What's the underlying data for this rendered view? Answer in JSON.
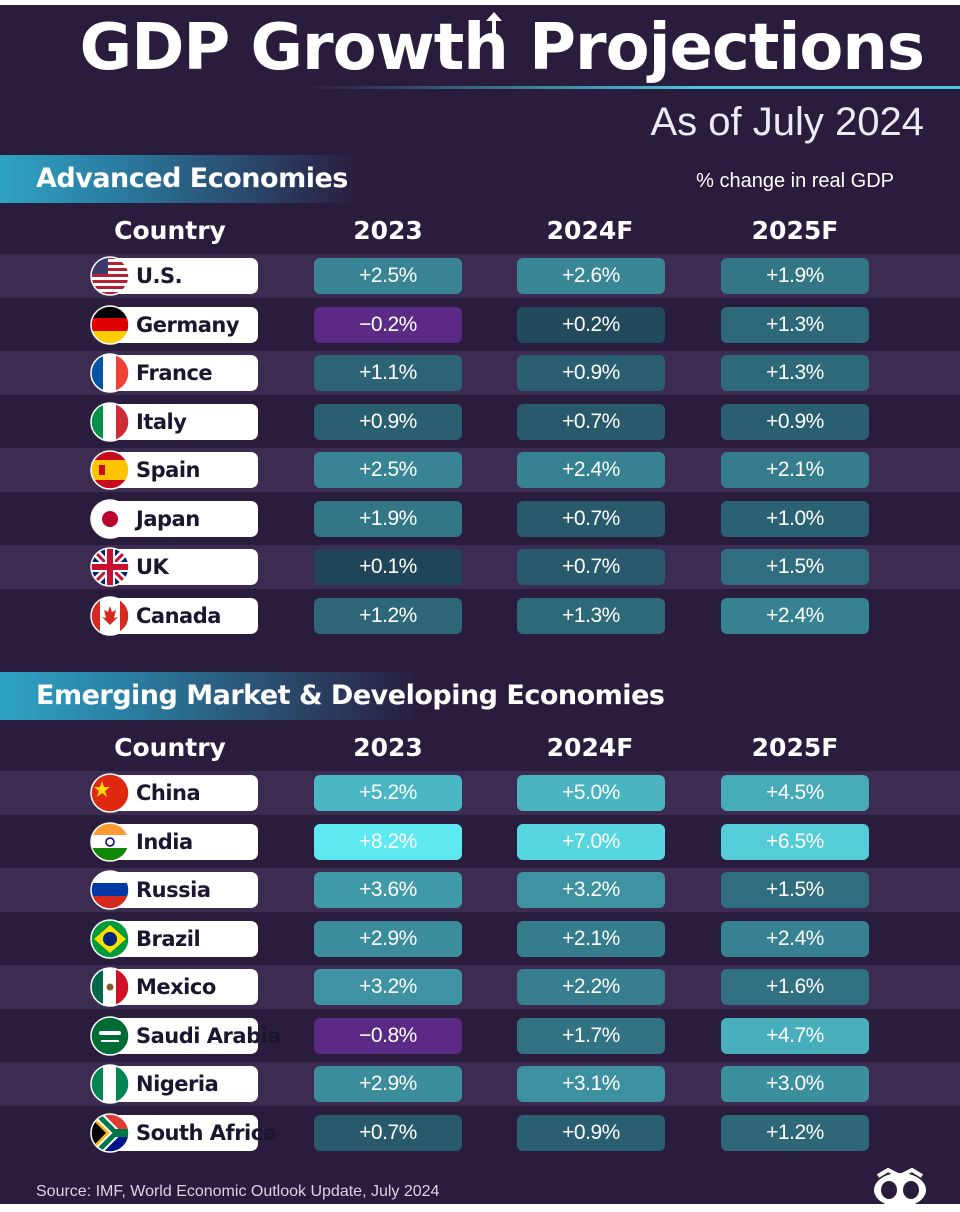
{
  "title": "GDP Growth Projections",
  "subtitle": "As of July 2024",
  "unit_note": "% change in real GDP",
  "source": "Source: IMF, World Economic Outlook Update, July 2024",
  "logo_icon": "visual-capitalist-logo-icon",
  "colors": {
    "background": "#2a1c3d",
    "negative": "#5b2a86",
    "scale_low": "#1e3f52",
    "scale_high": "#5ee8f2"
  },
  "chart_data": [
    {
      "type": "table",
      "title": "Advanced Economies",
      "columns": [
        "Country",
        "2023",
        "2024F",
        "2025F"
      ],
      "series": [
        {
          "name": "2023",
          "values": [
            2.5,
            -0.2,
            1.1,
            0.9,
            2.5,
            1.9,
            0.1,
            1.2
          ]
        },
        {
          "name": "2024F",
          "values": [
            2.6,
            0.2,
            0.9,
            0.7,
            2.4,
            0.7,
            0.7,
            1.3
          ]
        },
        {
          "name": "2025F",
          "values": [
            1.9,
            1.3,
            1.3,
            0.9,
            2.1,
            1.0,
            1.5,
            2.4
          ]
        }
      ],
      "rows": [
        {
          "country": "U.S.",
          "flag": "us-flag-icon",
          "values": [
            "+2.5%",
            "+2.6%",
            "+1.9%"
          ],
          "nums": [
            2.5,
            2.6,
            1.9
          ]
        },
        {
          "country": "Germany",
          "flag": "germany-flag-icon",
          "values": [
            "−0.2%",
            "+0.2%",
            "+1.3%"
          ],
          "nums": [
            -0.2,
            0.2,
            1.3
          ]
        },
        {
          "country": "France",
          "flag": "france-flag-icon",
          "values": [
            "+1.1%",
            "+0.9%",
            "+1.3%"
          ],
          "nums": [
            1.1,
            0.9,
            1.3
          ]
        },
        {
          "country": "Italy",
          "flag": "italy-flag-icon",
          "values": [
            "+0.9%",
            "+0.7%",
            "+0.9%"
          ],
          "nums": [
            0.9,
            0.7,
            0.9
          ]
        },
        {
          "country": "Spain",
          "flag": "spain-flag-icon",
          "values": [
            "+2.5%",
            "+2.4%",
            "+2.1%"
          ],
          "nums": [
            2.5,
            2.4,
            2.1
          ]
        },
        {
          "country": "Japan",
          "flag": "japan-flag-icon",
          "values": [
            "+1.9%",
            "+0.7%",
            "+1.0%"
          ],
          "nums": [
            1.9,
            0.7,
            1.0
          ]
        },
        {
          "country": "UK",
          "flag": "uk-flag-icon",
          "values": [
            "+0.1%",
            "+0.7%",
            "+1.5%"
          ],
          "nums": [
            0.1,
            0.7,
            1.5
          ]
        },
        {
          "country": "Canada",
          "flag": "canada-flag-icon",
          "values": [
            "+1.2%",
            "+1.3%",
            "+2.4%"
          ],
          "nums": [
            1.2,
            1.3,
            2.4
          ]
        }
      ]
    },
    {
      "type": "table",
      "title": "Emerging Market & Developing Economies",
      "columns": [
        "Country",
        "2023",
        "2024F",
        "2025F"
      ],
      "series": [
        {
          "name": "2023",
          "values": [
            5.2,
            8.2,
            3.6,
            2.9,
            3.2,
            -0.8,
            2.9,
            0.7
          ]
        },
        {
          "name": "2024F",
          "values": [
            5.0,
            7.0,
            3.2,
            2.1,
            2.2,
            1.7,
            3.1,
            0.9
          ]
        },
        {
          "name": "2025F",
          "values": [
            4.5,
            6.5,
            1.5,
            2.4,
            1.6,
            4.7,
            3.0,
            1.2
          ]
        }
      ],
      "rows": [
        {
          "country": "China",
          "flag": "china-flag-icon",
          "values": [
            "+5.2%",
            "+5.0%",
            "+4.5%"
          ],
          "nums": [
            5.2,
            5.0,
            4.5
          ]
        },
        {
          "country": "India",
          "flag": "india-flag-icon",
          "values": [
            "+8.2%",
            "+7.0%",
            "+6.5%"
          ],
          "nums": [
            8.2,
            7.0,
            6.5
          ]
        },
        {
          "country": "Russia",
          "flag": "russia-flag-icon",
          "values": [
            "+3.6%",
            "+3.2%",
            "+1.5%"
          ],
          "nums": [
            3.6,
            3.2,
            1.5
          ]
        },
        {
          "country": "Brazil",
          "flag": "brazil-flag-icon",
          "values": [
            "+2.9%",
            "+2.1%",
            "+2.4%"
          ],
          "nums": [
            2.9,
            2.1,
            2.4
          ]
        },
        {
          "country": "Mexico",
          "flag": "mexico-flag-icon",
          "values": [
            "+3.2%",
            "+2.2%",
            "+1.6%"
          ],
          "nums": [
            3.2,
            2.2,
            1.6
          ]
        },
        {
          "country": "Saudi Arabia",
          "flag": "saudi-arabia-flag-icon",
          "values": [
            "−0.8%",
            "+1.7%",
            "+4.7%"
          ],
          "nums": [
            -0.8,
            1.7,
            4.7
          ]
        },
        {
          "country": "Nigeria",
          "flag": "nigeria-flag-icon",
          "values": [
            "+2.9%",
            "+3.1%",
            "+3.0%"
          ],
          "nums": [
            2.9,
            3.1,
            3.0
          ]
        },
        {
          "country": "South Africa",
          "flag": "south-africa-flag-icon",
          "values": [
            "+0.7%",
            "+0.9%",
            "+1.2%"
          ],
          "nums": [
            0.7,
            0.9,
            1.2
          ]
        }
      ]
    }
  ]
}
